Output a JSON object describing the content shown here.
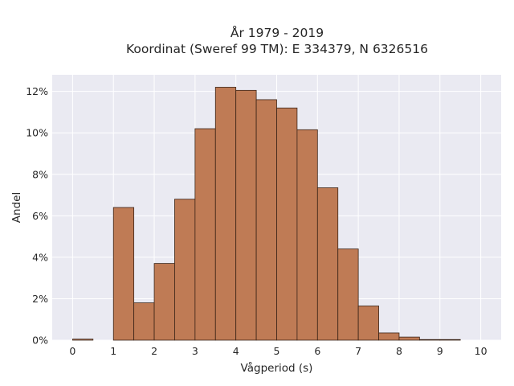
{
  "chart_data": {
    "type": "bar",
    "title_line1": "År 1979 - 2019",
    "title_line2": "Koordinat (Sweref 99 TM): E 334379, N 6326516",
    "xlabel": "Vågperiod (s)",
    "ylabel": "Andel",
    "xlim": [
      -0.5,
      10.5
    ],
    "ylim": [
      0,
      12.8
    ],
    "x_ticks": [
      0,
      1,
      2,
      3,
      4,
      5,
      6,
      7,
      8,
      9,
      10
    ],
    "x_tick_labels": [
      "0",
      "1",
      "2",
      "3",
      "4",
      "5",
      "6",
      "7",
      "8",
      "9",
      "10"
    ],
    "y_ticks": [
      0,
      2,
      4,
      6,
      8,
      10,
      12
    ],
    "y_tick_labels": [
      "0%",
      "2%",
      "4%",
      "6%",
      "8%",
      "10%",
      "12%"
    ],
    "bin_width": 0.5,
    "bins": [
      {
        "x_start": 0.0,
        "value": 0.05
      },
      {
        "x_start": 0.5,
        "value": 0.0
      },
      {
        "x_start": 1.0,
        "value": 6.4
      },
      {
        "x_start": 1.5,
        "value": 1.8
      },
      {
        "x_start": 2.0,
        "value": 3.7
      },
      {
        "x_start": 2.5,
        "value": 6.8
      },
      {
        "x_start": 3.0,
        "value": 10.2
      },
      {
        "x_start": 3.5,
        "value": 12.2
      },
      {
        "x_start": 4.0,
        "value": 12.05
      },
      {
        "x_start": 4.5,
        "value": 11.6
      },
      {
        "x_start": 5.0,
        "value": 11.2
      },
      {
        "x_start": 5.5,
        "value": 10.15
      },
      {
        "x_start": 6.0,
        "value": 7.35
      },
      {
        "x_start": 6.5,
        "value": 4.4
      },
      {
        "x_start": 7.0,
        "value": 1.65
      },
      {
        "x_start": 7.5,
        "value": 0.35
      },
      {
        "x_start": 8.0,
        "value": 0.15
      },
      {
        "x_start": 8.5,
        "value": 0.03
      },
      {
        "x_start": 9.0,
        "value": 0.03
      },
      {
        "x_start": 9.5,
        "value": 0.0
      }
    ],
    "grid": true,
    "colors": {
      "bar_fill": "#bf7b55",
      "bar_edge": "#3b2417",
      "plot_background": "#eaeaf2",
      "grid": "#ffffff"
    }
  }
}
